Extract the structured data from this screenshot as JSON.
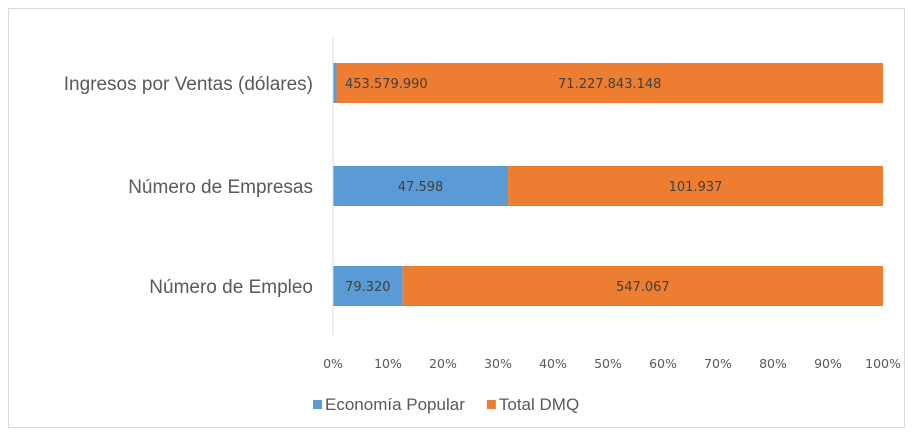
{
  "chart_data": {
    "type": "bar",
    "orientation": "horizontal",
    "stacking": "percent",
    "categories": [
      "Ingresos por Ventas (dólares)",
      "Número de Empresas",
      "Número de Empleo"
    ],
    "series": [
      {
        "name": "Economía Popular",
        "color": "#5b9bd5",
        "values": [
          453579990,
          47598,
          79320
        ],
        "labels": [
          "453.579.990",
          "47.598",
          "79.320"
        ]
      },
      {
        "name": "Total DMQ",
        "color": "#ed7d31",
        "values": [
          71227843148,
          101937,
          547067
        ],
        "labels": [
          "71.227.843.148",
          "101.937",
          "547.067"
        ]
      }
    ],
    "xlim": [
      0,
      100
    ],
    "xticks": [
      "0%",
      "10%",
      "20%",
      "30%",
      "40%",
      "50%",
      "60%",
      "70%",
      "80%",
      "90%",
      "100%"
    ],
    "grid": false,
    "legend_position": "bottom",
    "title": "",
    "xlabel": "",
    "ylabel": ""
  }
}
